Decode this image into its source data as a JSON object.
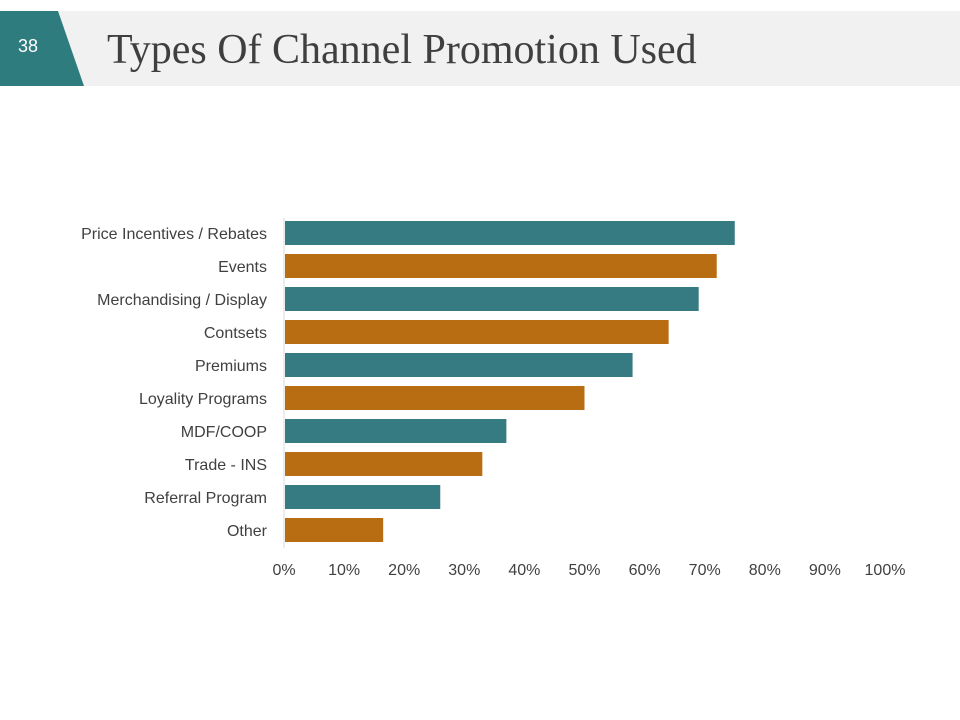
{
  "slide": {
    "number": "38",
    "title": "Types Of Channel Promotion Used"
  },
  "colors": {
    "teal": "#367a82",
    "orange": "#b86d12",
    "header_band": "#f1f1f1",
    "axis_text": "#404040"
  },
  "chart_data": {
    "type": "bar",
    "orientation": "horizontal",
    "title": "",
    "xlabel": "",
    "ylabel": "",
    "xlim": [
      0,
      100
    ],
    "x_ticks": [
      "0%",
      "10%",
      "20%",
      "30%",
      "40%",
      "50%",
      "60%",
      "70%",
      "80%",
      "90%",
      "100%"
    ],
    "grid": false,
    "legend": "none",
    "categories": [
      "Price Incentives / Rebates",
      "Events",
      "Merchandising / Display",
      "Contsets",
      "Premiums",
      "Loyality Programs",
      "MDF/COOP",
      "Trade - INS",
      "Referral Program",
      "Other"
    ],
    "values": [
      75,
      72,
      69,
      64,
      58,
      50,
      37,
      33,
      26,
      16.5
    ],
    "bar_colors": [
      "#367a82",
      "#b86d12",
      "#367a82",
      "#b86d12",
      "#367a82",
      "#b86d12",
      "#367a82",
      "#b86d12",
      "#367a82",
      "#b86d12"
    ]
  }
}
